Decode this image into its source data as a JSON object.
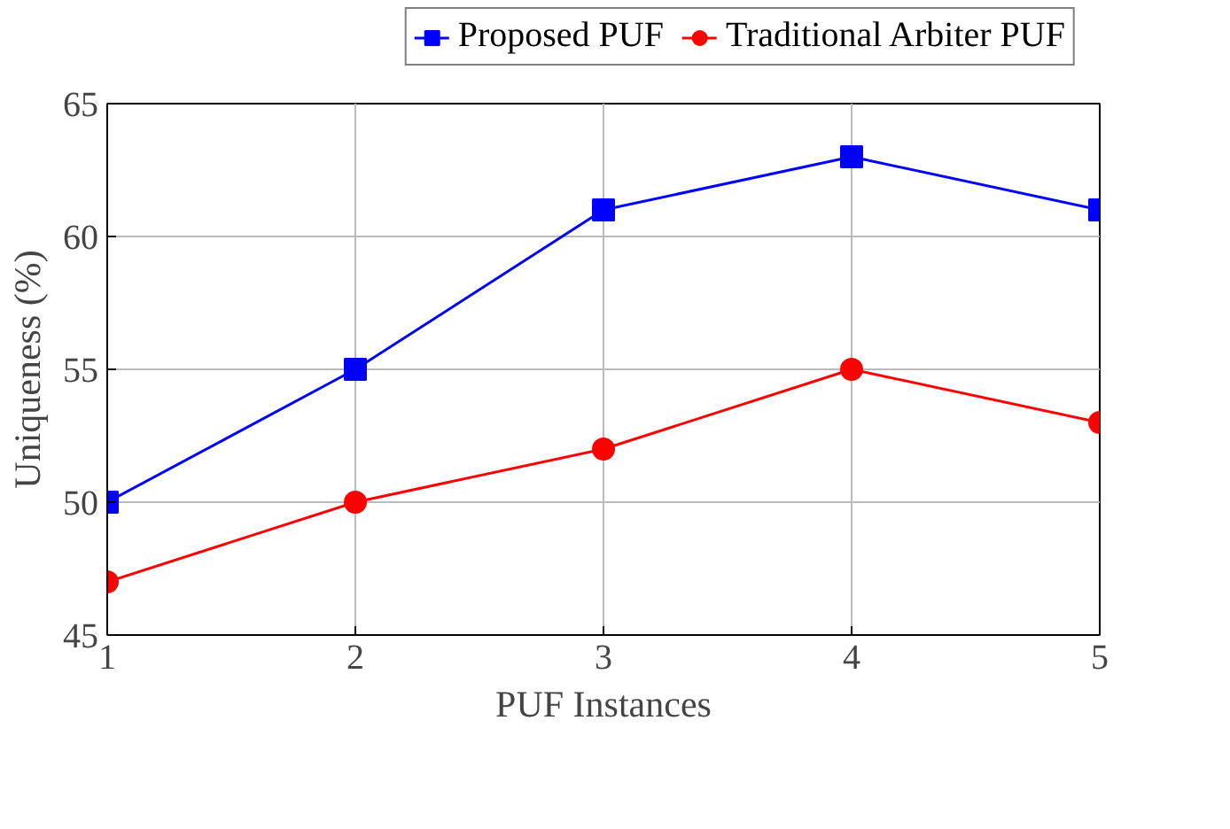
{
  "chart_data": {
    "type": "line",
    "xlabel": "PUF Instances",
    "ylabel": "Uniqueness (%)",
    "x": [
      1,
      2,
      3,
      4,
      5
    ],
    "series": [
      {
        "name": "Proposed PUF",
        "color": "#0000ff",
        "marker": "square",
        "values": [
          50,
          55,
          61,
          63,
          61
        ]
      },
      {
        "name": "Traditional Arbiter PUF",
        "color": "#ff0000",
        "marker": "circle",
        "values": [
          47,
          50,
          52,
          55,
          53
        ]
      }
    ],
    "xlim": [
      1,
      5
    ],
    "xticks": [
      1,
      2,
      3,
      4,
      5
    ],
    "ylim": [
      45,
      65
    ],
    "yticks": [
      45,
      50,
      55,
      60,
      65
    ],
    "grid": true,
    "legend": "top",
    "line_style": "solid"
  }
}
